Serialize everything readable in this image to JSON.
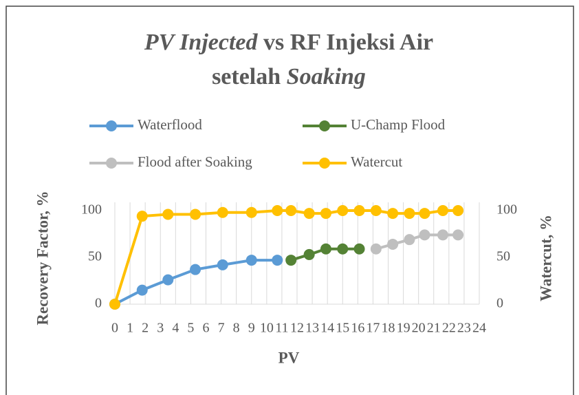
{
  "chart_data": {
    "type": "scatter",
    "title": [
      [
        {
          "text": "PV Injected",
          "italic": true
        },
        {
          "text": " vs RF Injeksi Air",
          "italic": false
        }
      ],
      [
        {
          "text": "setelah ",
          "italic": false
        },
        {
          "text": "Soaking",
          "italic": true
        }
      ]
    ],
    "xlabel": "PV",
    "ylabel": "Recovery Factor, %",
    "y2label": "Watercut, %",
    "xlim": [
      0,
      24
    ],
    "xticks": [
      0,
      1,
      2,
      3,
      4,
      5,
      6,
      7,
      8,
      9,
      10,
      11,
      12,
      13,
      14,
      15,
      16,
      17,
      18,
      19,
      20,
      21,
      22,
      23,
      24
    ],
    "ylim": [
      0,
      100
    ],
    "yticks": [
      0,
      50,
      100
    ],
    "y2lim": [
      0,
      100
    ],
    "y2ticks": [
      0,
      50,
      100
    ],
    "grid": "x",
    "legend": "top",
    "series": [
      {
        "name": "Waterflood",
        "color": "#5b9bd5",
        "axis": "y",
        "x": [
          0,
          1.8,
          3.5,
          5.3,
          7.1,
          9.0,
          10.7
        ],
        "values": [
          0,
          15,
          26,
          37,
          42,
          47,
          47
        ]
      },
      {
        "name": "U-Champ Flood",
        "color": "#548235",
        "axis": "y",
        "x": [
          11.6,
          12.8,
          13.9,
          15.0,
          16.1
        ],
        "values": [
          47,
          53,
          59,
          59,
          59
        ]
      },
      {
        "name": "Flood after Soaking",
        "color": "#bfbfbf",
        "axis": "y",
        "x": [
          17.2,
          18.3,
          19.4,
          20.4,
          21.6,
          22.6
        ],
        "values": [
          59,
          64,
          69,
          74,
          74,
          74
        ]
      },
      {
        "name": "Watercut",
        "color": "#ffc000",
        "axis": "y2",
        "x": [
          0,
          1.8,
          3.5,
          5.3,
          7.1,
          9.0,
          10.7,
          11.6,
          12.8,
          13.9,
          15.0,
          16.1,
          17.2,
          18.3,
          19.4,
          20.4,
          21.6,
          22.6
        ],
        "values": [
          0,
          94,
          96,
          96,
          98,
          98,
          100,
          100,
          97,
          97,
          100,
          100,
          100,
          97,
          97,
          97,
          100,
          100
        ]
      }
    ]
  }
}
